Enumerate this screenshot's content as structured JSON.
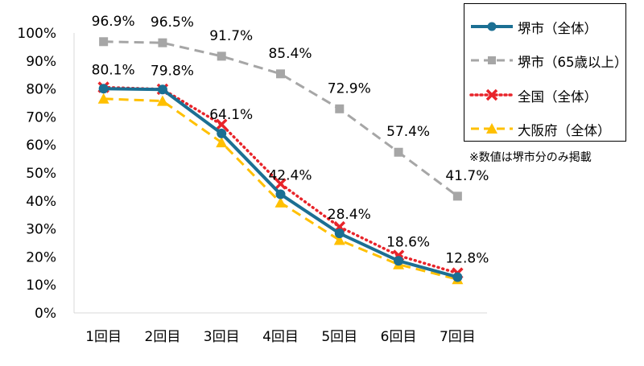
{
  "chart_data": {
    "type": "line",
    "categories": [
      "1回目",
      "2回目",
      "3回目",
      "4回目",
      "5回目",
      "6回目",
      "7回目"
    ],
    "y_ticks": [
      "0%",
      "10%",
      "20%",
      "30%",
      "40%",
      "50%",
      "60%",
      "70%",
      "80%",
      "90%",
      "100%"
    ],
    "ylim": [
      0,
      100
    ],
    "grid": false,
    "legend_position": "top-right",
    "series": [
      {
        "name": "堺市（全体）",
        "values": [
          80.1,
          79.8,
          64.1,
          42.4,
          28.4,
          18.6,
          12.8
        ],
        "color": "#1B6F93",
        "style": "solid",
        "marker": "circle"
      },
      {
        "name": "堺市（65歳以上）",
        "values": [
          96.9,
          96.5,
          91.7,
          85.4,
          72.9,
          57.4,
          41.7
        ],
        "color": "#A6A6A6",
        "style": "dashed",
        "marker": "square"
      },
      {
        "name": "全国（全体）",
        "values": [
          80.6,
          79.9,
          67.3,
          46.1,
          30.7,
          20.5,
          14.2
        ],
        "color": "#E8242A",
        "style": "dotted",
        "marker": "x"
      },
      {
        "name": "大阪府（全体）",
        "values": [
          76.5,
          75.7,
          60.9,
          39.4,
          26.0,
          17.3,
          12.0
        ],
        "color": "#FFC000",
        "style": "dashed",
        "marker": "triangle"
      }
    ],
    "data_labels": {
      "堺市（全体）": [
        "80.1%",
        "79.8%",
        "64.1%",
        "42.4%",
        "28.4%",
        "18.6%",
        "12.8%"
      ],
      "堺市（65歳以上）": [
        "96.9%",
        "96.5%",
        "91.7%",
        "85.4%",
        "72.9%",
        "57.4%",
        "41.7%"
      ]
    }
  },
  "note": "※数値は堺市分のみ掲載"
}
